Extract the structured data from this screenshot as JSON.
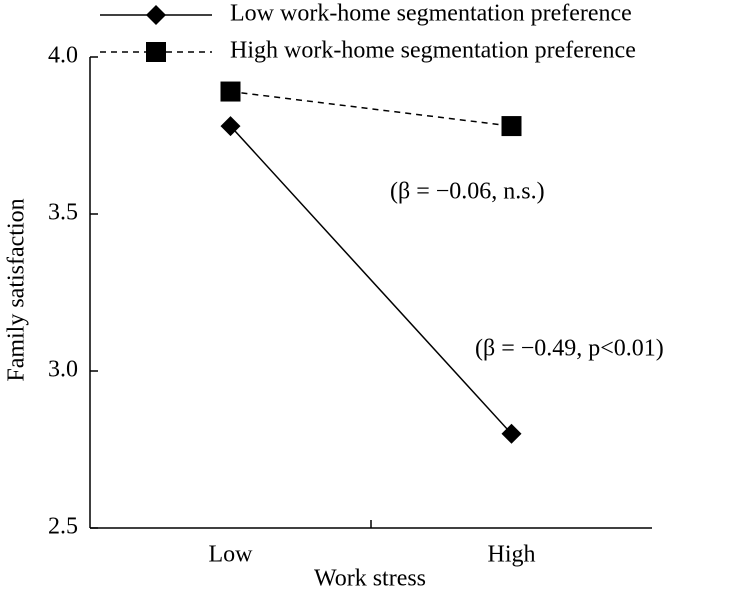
{
  "chart_data": {
    "type": "line",
    "x_label": "Work stress",
    "y_label": "Family satisfaction",
    "categories": [
      "Low",
      "High"
    ],
    "series": [
      {
        "name": "Low work-home segmentation preference",
        "color": "#000000",
        "marker": "diamond",
        "dash": "solid",
        "values": [
          3.78,
          2.8
        ]
      },
      {
        "name": "High work-home segmentation preference",
        "color": "#000000",
        "marker": "square",
        "dash": "dashed",
        "values": [
          3.89,
          3.78
        ]
      }
    ],
    "annotations": [
      "(β = −0.06, n.s.)",
      "(β = −0.49, p<0.01)"
    ],
    "ylim": [
      2.5,
      4.0
    ],
    "yticks": [
      2.5,
      {
        "value": 3,
        "label": "3.0"
      },
      3.5,
      {
        "value": 4,
        "label": "4.0"
      }
    ],
    "grid": false
  }
}
